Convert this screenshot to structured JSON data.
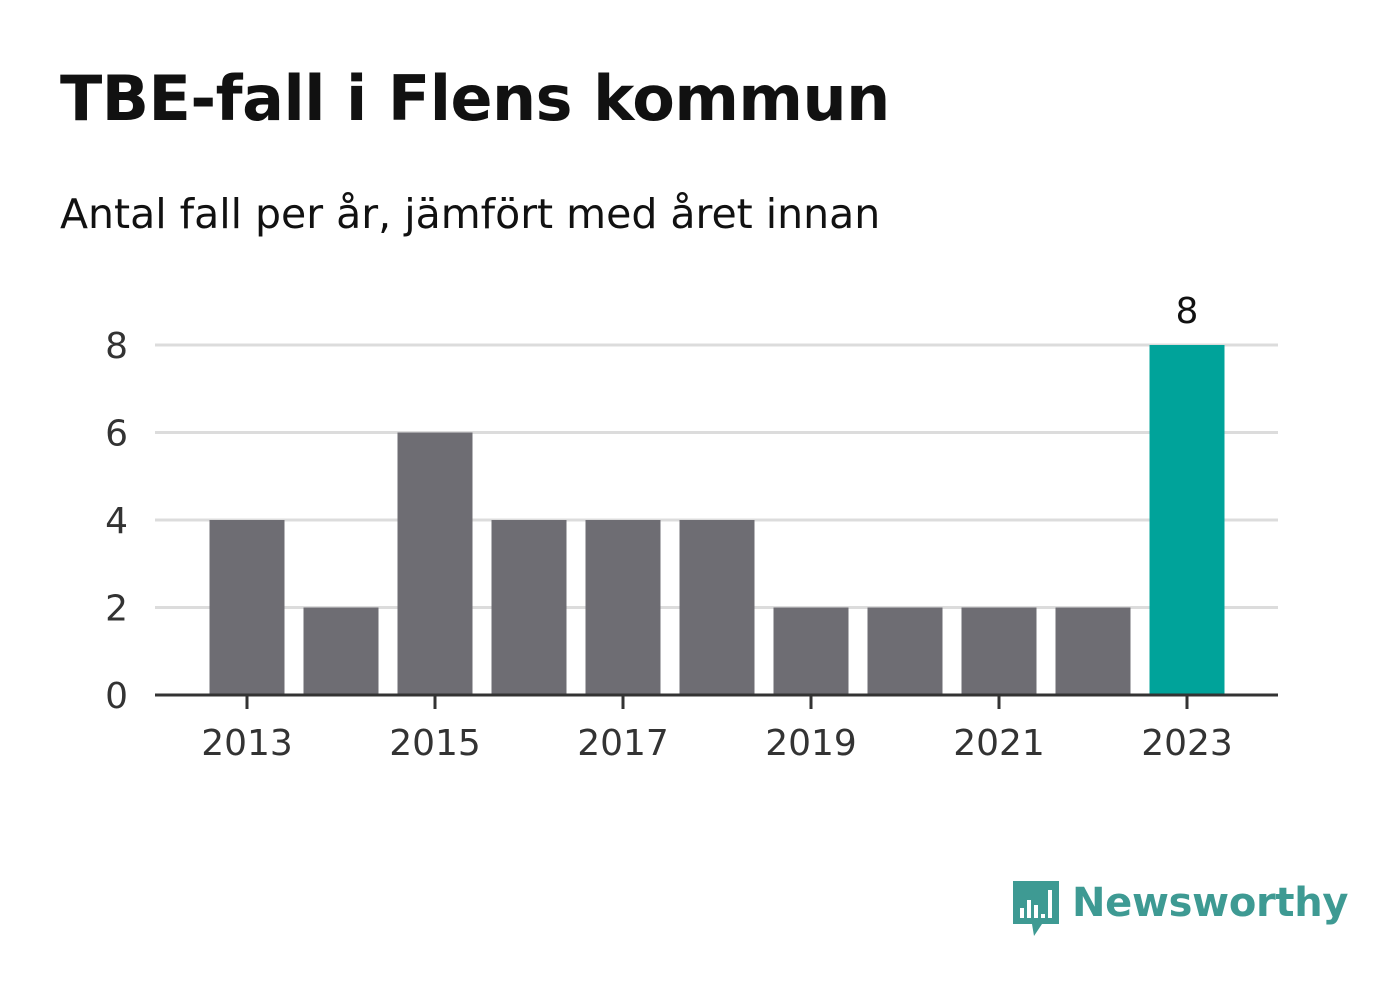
{
  "title": "TBE-fall i Flens kommun",
  "subtitle": "Antal fall per år, jämfört med året innan",
  "brand": {
    "name": "Newsworthy",
    "color": "#3e9a93"
  },
  "chart_data": {
    "type": "bar",
    "title": "TBE-fall i Flens kommun",
    "subtitle": "Antal fall per år, jämfört med året innan",
    "xlabel": "",
    "ylabel": "",
    "categories": [
      "2013",
      "2014",
      "2015",
      "2016",
      "2017",
      "2018",
      "2019",
      "2020",
      "2021",
      "2022",
      "2023"
    ],
    "values": [
      4,
      2,
      6,
      4,
      4,
      4,
      2,
      2,
      2,
      2,
      8
    ],
    "x_tick_labels": [
      "2013",
      "2015",
      "2017",
      "2019",
      "2021",
      "2023"
    ],
    "y_ticks": [
      0,
      2,
      4,
      6,
      8
    ],
    "ylim": [
      0,
      8
    ],
    "grid": true,
    "highlight": {
      "category": "2023",
      "label": "8",
      "color": "#00a39a"
    },
    "bar_color": "#6e6d73"
  }
}
